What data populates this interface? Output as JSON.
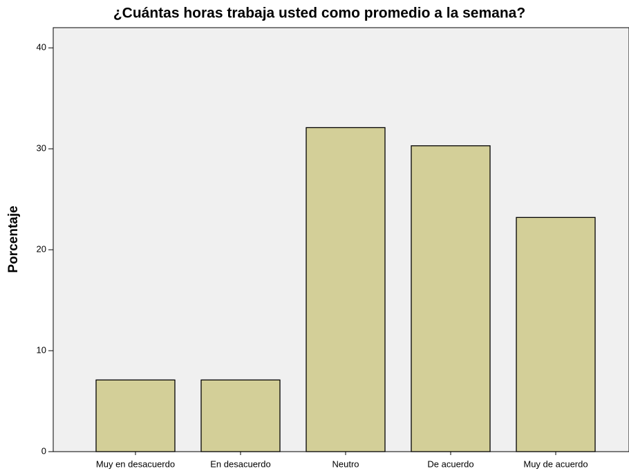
{
  "chart_data": {
    "type": "bar",
    "title": "¿Cuántas horas trabaja usted como promedio a la semana?",
    "y_label": "Porcentaje",
    "categories": [
      "Muy en desacuerdo",
      "En desacuerdo",
      "Neutro",
      "De acuerdo",
      "Muy de acuerdo"
    ],
    "values": [
      7.1,
      7.1,
      32.1,
      30.3,
      23.2
    ],
    "color": "#d3cf98",
    "ylim": [
      0,
      42
    ],
    "yticks": [
      0,
      10,
      20,
      30,
      40
    ],
    "grid": false
  }
}
